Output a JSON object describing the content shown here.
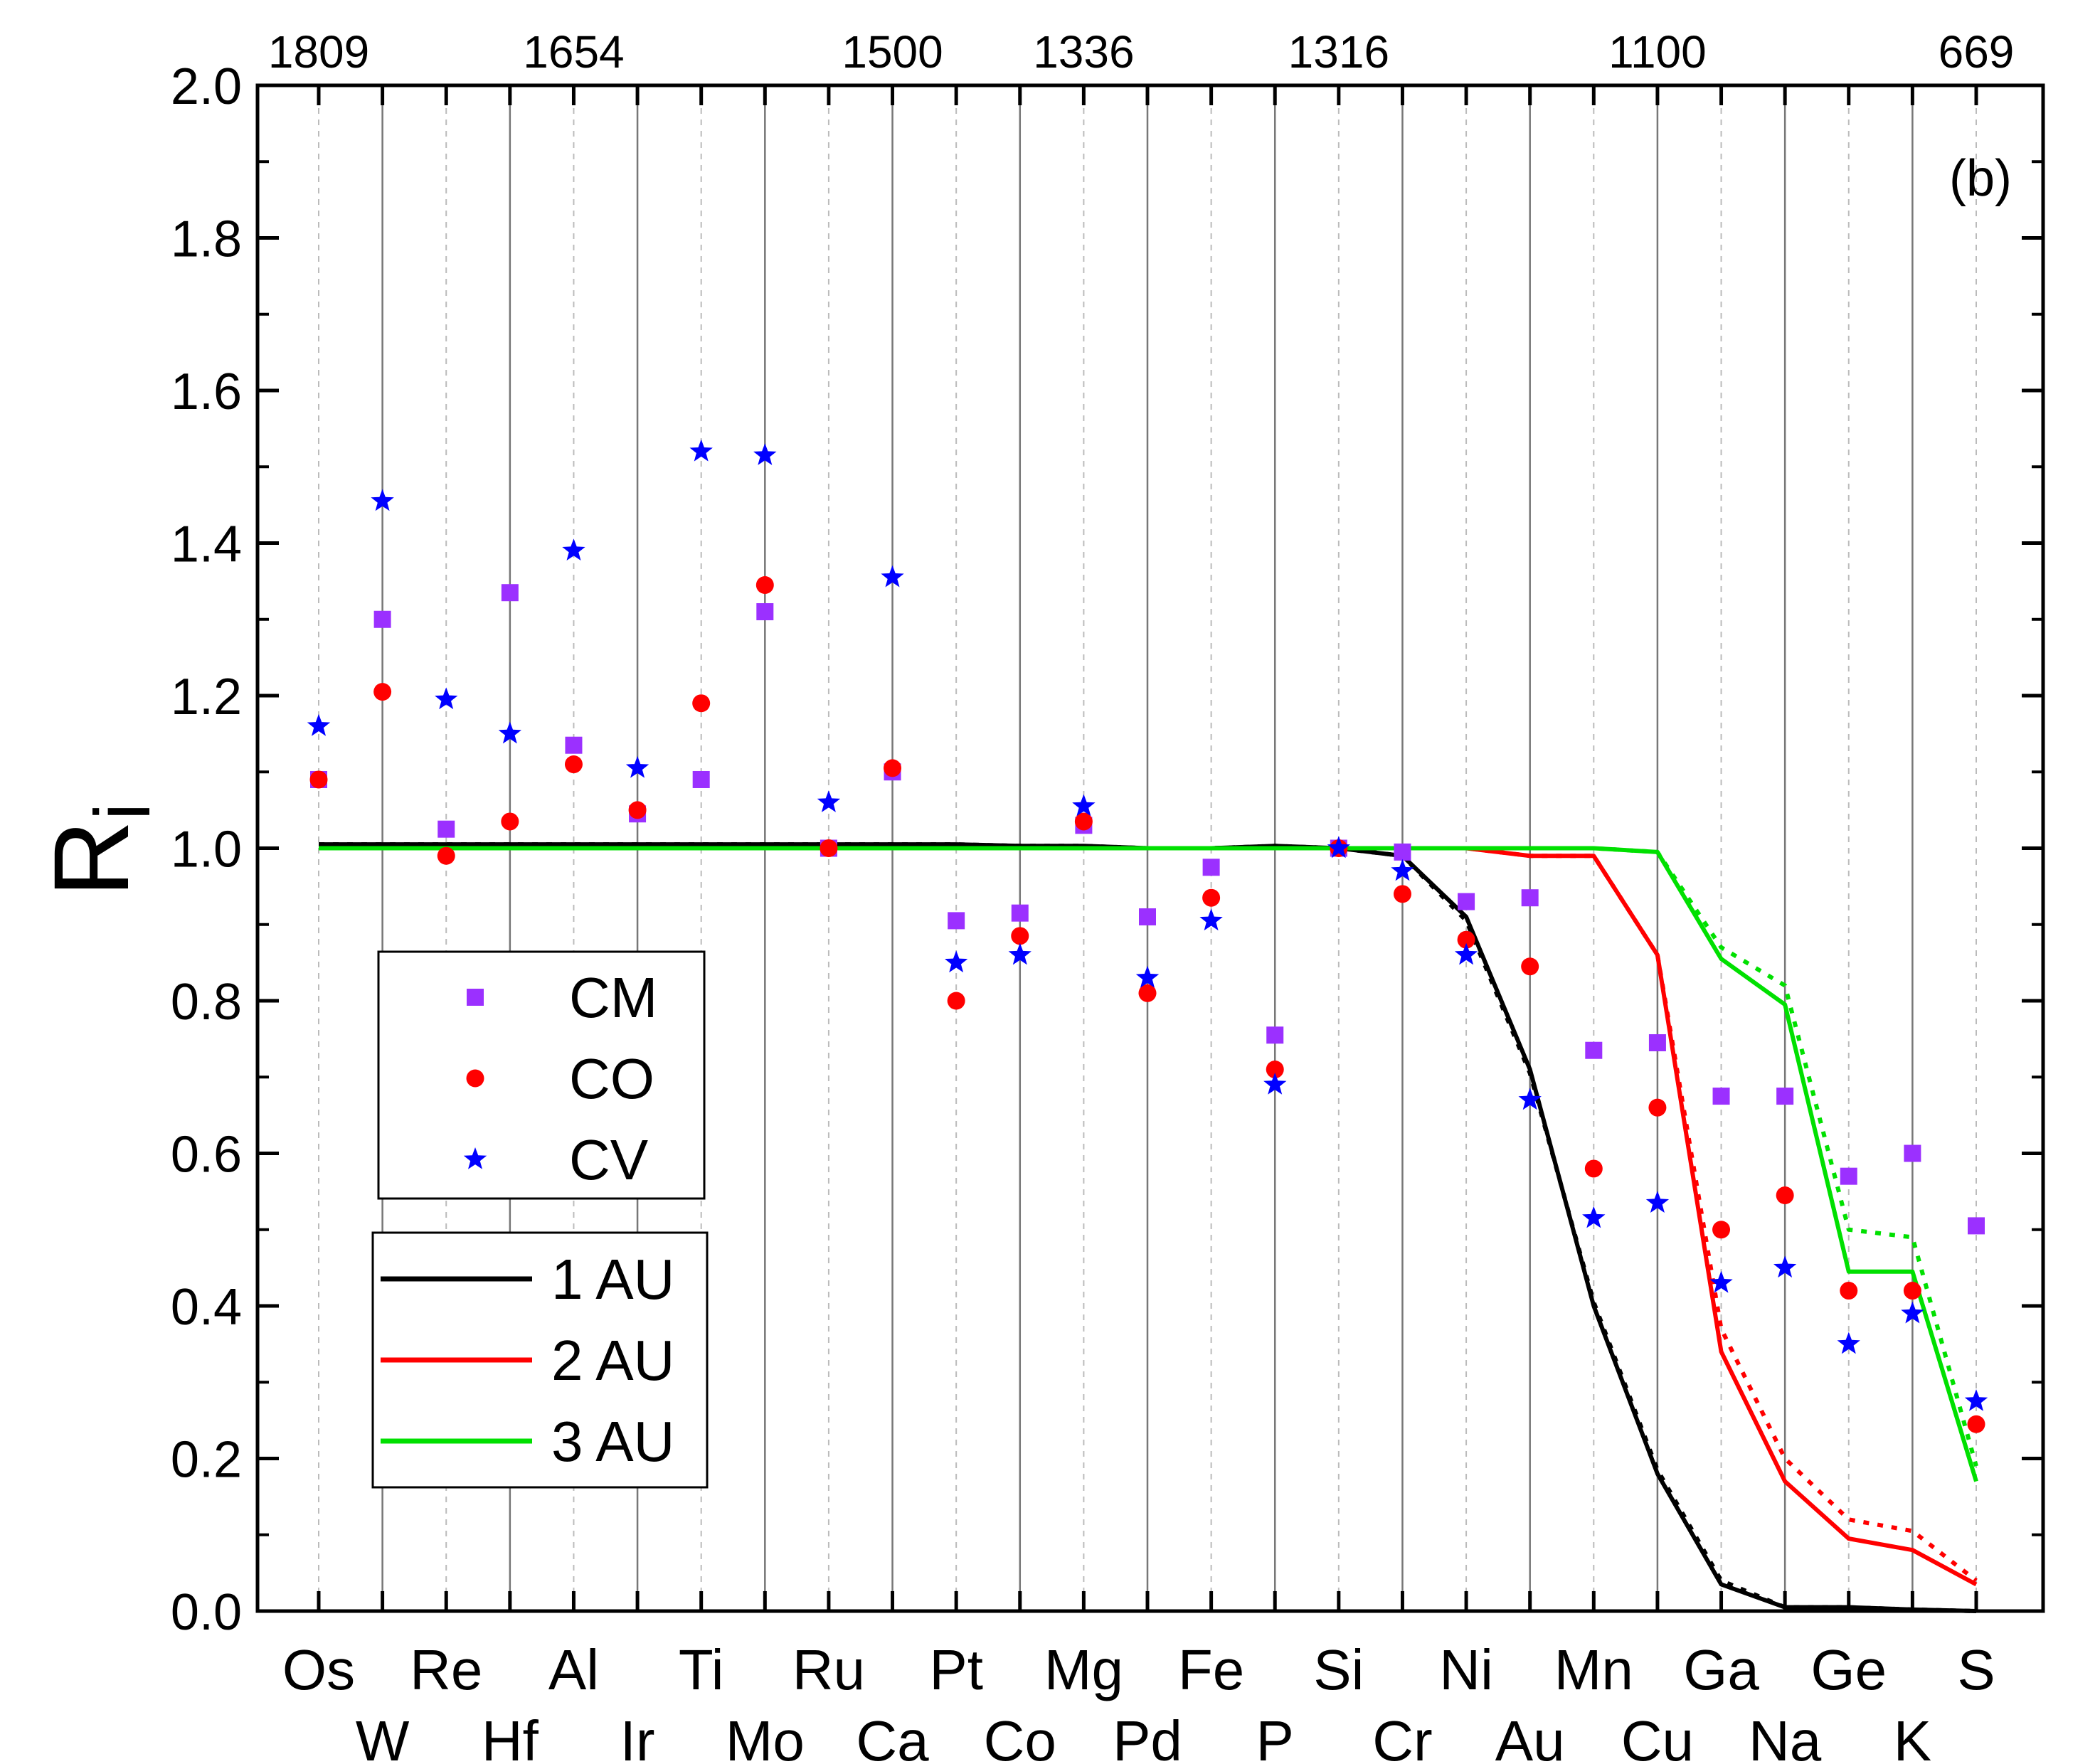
{
  "chart_data": {
    "type": "scatter",
    "title": "",
    "panel_label": "(b)",
    "ylabel": "R",
    "ylabel_subscript": "i",
    "xlabel": "",
    "ylim": [
      0,
      2.0
    ],
    "yticks": [
      "0.0",
      "0.2",
      "0.4",
      "0.6",
      "0.8",
      "1.0",
      "1.2",
      "1.4",
      "1.6",
      "1.8",
      "2.0"
    ],
    "categories": [
      "Os",
      "W",
      "Re",
      "Hf",
      "Al",
      "Ir",
      "Ti",
      "Mo",
      "Ru",
      "Ca",
      "Pt",
      "Co",
      "Mg",
      "Pd",
      "Fe",
      "P",
      "Si",
      "Cr",
      "Ni",
      "Au",
      "Mn",
      "Cu",
      "Ga",
      "Na",
      "Ge",
      "K",
      "S"
    ],
    "top_axis_labels": [
      {
        "index": 0,
        "label": "1809"
      },
      {
        "index": 4,
        "label": "1654"
      },
      {
        "index": 9,
        "label": "1500"
      },
      {
        "index": 12,
        "label": "1336"
      },
      {
        "index": 16,
        "label": "1316"
      },
      {
        "index": 21,
        "label": "1100"
      },
      {
        "index": 26,
        "label": "669"
      }
    ],
    "scatter_series": [
      {
        "name": "CM",
        "color": "#9b30ff",
        "marker": "square",
        "values": [
          1.09,
          1.3,
          1.025,
          1.335,
          1.135,
          1.045,
          1.09,
          1.31,
          1.0,
          1.1,
          0.905,
          0.915,
          1.03,
          0.91,
          0.975,
          0.755,
          1.0,
          0.995,
          0.93,
          0.935,
          0.735,
          0.745,
          0.675,
          0.675,
          0.57,
          0.6,
          0.505
        ]
      },
      {
        "name": "CO",
        "color": "#ff0000",
        "marker": "circle",
        "values": [
          1.09,
          1.205,
          0.99,
          1.035,
          1.11,
          1.05,
          1.19,
          1.345,
          1.0,
          1.105,
          0.8,
          0.885,
          1.035,
          0.81,
          0.935,
          0.71,
          1.0,
          0.94,
          0.88,
          0.845,
          0.58,
          0.66,
          0.5,
          0.545,
          0.42,
          0.42,
          0.245
        ]
      },
      {
        "name": "CV",
        "color": "#0000ff",
        "marker": "star",
        "values": [
          1.16,
          1.455,
          1.195,
          1.15,
          1.39,
          1.105,
          1.52,
          1.515,
          1.06,
          1.355,
          0.85,
          0.86,
          1.055,
          0.83,
          0.905,
          0.69,
          1.0,
          0.97,
          0.86,
          0.67,
          0.515,
          0.535,
          0.43,
          0.45,
          0.35,
          0.39,
          0.275
        ]
      }
    ],
    "line_series": [
      {
        "name": "1 AU",
        "color": "#000000",
        "values": [
          1.005,
          1.005,
          1.005,
          1.005,
          1.005,
          1.005,
          1.005,
          1.005,
          1.005,
          1.005,
          1.005,
          1.003,
          1.003,
          1.0,
          1.0,
          1.003,
          1.0,
          0.99,
          0.91,
          0.71,
          0.4,
          0.18,
          0.035,
          0.005,
          0.005,
          0.002,
          0.0
        ],
        "dotted": [
          1.005,
          1.005,
          1.005,
          1.005,
          1.005,
          1.005,
          1.005,
          1.005,
          1.005,
          1.005,
          1.005,
          1.003,
          1.003,
          1.0,
          1.0,
          1.003,
          1.0,
          0.99,
          0.905,
          0.705,
          0.405,
          0.185,
          0.04,
          0.005,
          0.005,
          0.002,
          0.0
        ]
      },
      {
        "name": "2 AU",
        "color": "#ff0000",
        "values": [
          1.0,
          1.0,
          1.0,
          1.0,
          1.0,
          1.0,
          1.0,
          1.0,
          1.0,
          1.0,
          1.0,
          1.0,
          1.0,
          1.0,
          1.0,
          1.0,
          1.0,
          1.0,
          1.0,
          0.99,
          0.99,
          0.86,
          0.34,
          0.17,
          0.095,
          0.08,
          0.035
        ],
        "dotted": [
          1.0,
          1.0,
          1.0,
          1.0,
          1.0,
          1.0,
          1.0,
          1.0,
          1.0,
          1.0,
          1.0,
          1.0,
          1.0,
          1.0,
          1.0,
          1.0,
          1.0,
          1.0,
          1.0,
          0.99,
          0.99,
          0.86,
          0.37,
          0.2,
          0.12,
          0.105,
          0.04
        ]
      },
      {
        "name": "3 AU",
        "color": "#00e000",
        "values": [
          1.0,
          1.0,
          1.0,
          1.0,
          1.0,
          1.0,
          1.0,
          1.0,
          1.0,
          1.0,
          1.0,
          1.0,
          1.0,
          1.0,
          1.0,
          1.0,
          1.0,
          1.0,
          1.0,
          1.0,
          1.0,
          0.995,
          0.855,
          0.795,
          0.445,
          0.445,
          0.17
        ],
        "dotted": [
          1.0,
          1.0,
          1.0,
          1.0,
          1.0,
          1.0,
          1.0,
          1.0,
          1.0,
          1.0,
          1.0,
          1.0,
          1.0,
          1.0,
          1.0,
          1.0,
          1.0,
          1.0,
          1.0,
          1.0,
          1.0,
          0.995,
          0.87,
          0.82,
          0.5,
          0.49,
          0.19
        ]
      }
    ],
    "legend_scatter": [
      "CM",
      "CO",
      "CV"
    ],
    "legend_lines": [
      "1 AU",
      "2 AU",
      "3 AU"
    ]
  }
}
